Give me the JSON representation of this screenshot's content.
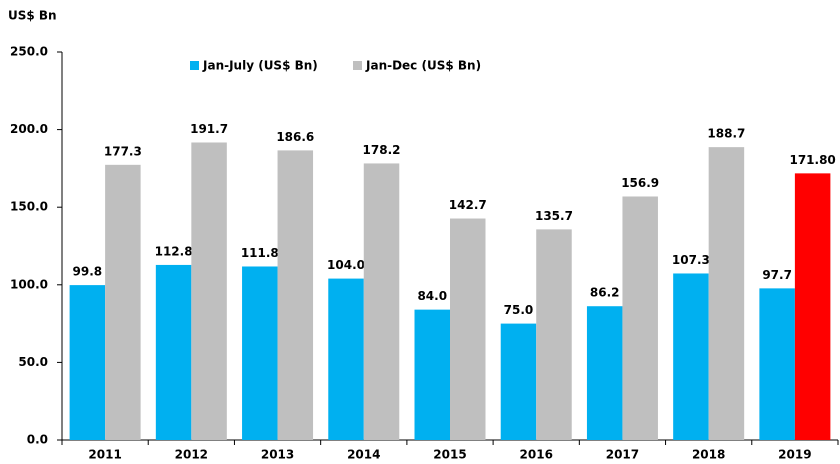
{
  "chart_data": {
    "type": "bar",
    "y_axis_label": "US$ Bn",
    "categories": [
      "2011",
      "2012",
      "2013",
      "2014",
      "2015",
      "2016",
      "2017",
      "2018",
      "2019"
    ],
    "series": [
      {
        "name": "Jan-July (US$ Bn)",
        "color": "#00b0f0",
        "values": [
          99.8,
          112.8,
          111.8,
          104.0,
          84.0,
          75.0,
          86.2,
          107.3,
          97.7
        ],
        "value_labels": [
          "99.8",
          "112.8",
          "111.8",
          "104.0",
          "84.0",
          "75.0",
          "86.2",
          "107.3",
          "97.7"
        ]
      },
      {
        "name": "Jan-Dec (US$ Bn)",
        "color": "#bfbfbf",
        "colors": [
          "#bfbfbf",
          "#bfbfbf",
          "#bfbfbf",
          "#bfbfbf",
          "#bfbfbf",
          "#bfbfbf",
          "#bfbfbf",
          "#bfbfbf",
          "#ff0000"
        ],
        "values": [
          177.3,
          191.7,
          186.6,
          178.2,
          142.7,
          135.7,
          156.9,
          188.7,
          171.8
        ],
        "value_labels": [
          "177.3",
          "191.7",
          "186.6",
          "178.2",
          "142.7",
          "135.7",
          "156.9",
          "188.7",
          "171.80"
        ]
      }
    ],
    "ylim": [
      0,
      250
    ],
    "yticks": [
      {
        "value": 0,
        "label": "0.0"
      },
      {
        "value": 50,
        "label": "50.0"
      },
      {
        "value": 100,
        "label": "100.0"
      },
      {
        "value": 150,
        "label": "150.0"
      },
      {
        "value": 200,
        "label": "200.0"
      },
      {
        "value": 250,
        "label": "250.0"
      }
    ],
    "grid": false,
    "legend": "top"
  }
}
